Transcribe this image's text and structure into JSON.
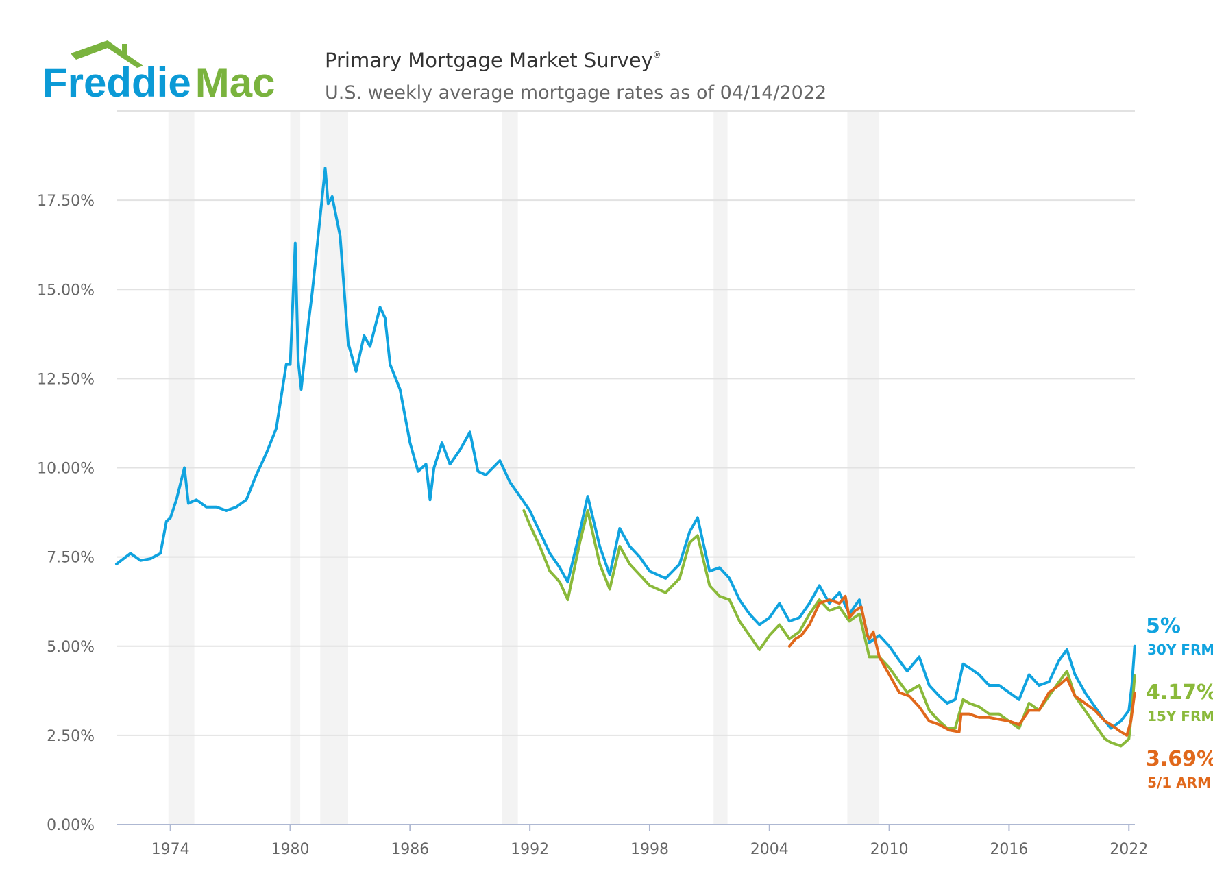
{
  "brand": {
    "name_part1": "Freddie",
    "name_part2": "Mac",
    "color_blue": "#0b9ad6",
    "color_green": "#7ab33e"
  },
  "header": {
    "title": "Primary Mortgage Market Survey",
    "title_mark": "®",
    "subtitle": "U.S. weekly average mortgage rates as of 04/14/2022"
  },
  "chart_data": {
    "type": "line",
    "title": "Primary Mortgage Market Survey",
    "subtitle": "U.S. weekly average mortgage rates as of 04/14/2022",
    "xlabel": "",
    "ylabel": "",
    "xlim": [
      1971.3,
      2022.3
    ],
    "ylim": [
      0,
      20
    ],
    "grid": true,
    "x_ticks": [
      1974,
      1980,
      1986,
      1992,
      1998,
      2004,
      2010,
      2016,
      2022
    ],
    "y_ticks": [
      0,
      2.5,
      5,
      7.5,
      10,
      12.5,
      15,
      17.5
    ],
    "y_tick_labels": [
      "0.00%",
      "2.50%",
      "5.00%",
      "7.50%",
      "10.00%",
      "12.50%",
      "15.00%",
      "17.50%"
    ],
    "recessions": [
      [
        1973.9,
        1975.2
      ],
      [
        1980.0,
        1980.5
      ],
      [
        1981.5,
        1982.9
      ],
      [
        1990.6,
        1991.4
      ],
      [
        2001.2,
        2001.9
      ],
      [
        2007.9,
        2009.5
      ]
    ],
    "series": [
      {
        "name": "30Y FRM",
        "color": "#10a3df",
        "final_value_label": "5%",
        "x": [
          1971.3,
          1972.0,
          1972.5,
          1973.0,
          1973.5,
          1973.8,
          1974.0,
          1974.3,
          1974.7,
          1974.9,
          1975.3,
          1975.8,
          1976.3,
          1976.8,
          1977.3,
          1977.8,
          1978.3,
          1978.8,
          1979.3,
          1979.8,
          1980.0,
          1980.25,
          1980.4,
          1980.55,
          1980.9,
          1981.1,
          1981.4,
          1981.75,
          1981.9,
          1982.1,
          1982.5,
          1982.9,
          1983.3,
          1983.7,
          1984.0,
          1984.5,
          1984.75,
          1985.0,
          1985.5,
          1986.0,
          1986.4,
          1986.8,
          1987.0,
          1987.2,
          1987.6,
          1988.0,
          1988.5,
          1989.0,
          1989.4,
          1989.8,
          1990.5,
          1991.0,
          1991.5,
          1992.0,
          1992.5,
          1993.0,
          1993.5,
          1993.9,
          1994.5,
          1994.9,
          1995.5,
          1996.0,
          1996.5,
          1997.0,
          1997.5,
          1998.0,
          1998.8,
          1999.5,
          2000.0,
          2000.4,
          2001.0,
          2001.5,
          2002.0,
          2002.5,
          2003.0,
          2003.5,
          2004.0,
          2004.5,
          2005.0,
          2005.5,
          2006.0,
          2006.5,
          2007.0,
          2007.5,
          2008.0,
          2008.5,
          2009.0,
          2009.5,
          2010.0,
          2010.5,
          2010.9,
          2011.5,
          2012.0,
          2012.5,
          2012.9,
          2013.3,
          2013.7,
          2014.0,
          2014.5,
          2015.0,
          2015.5,
          2016.0,
          2016.5,
          2017.0,
          2017.5,
          2018.0,
          2018.5,
          2018.9,
          2019.3,
          2019.8,
          2020.3,
          2020.8,
          2021.1,
          2021.6,
          2022.0,
          2022.15,
          2022.29
        ],
        "y": [
          7.3,
          7.6,
          7.4,
          7.45,
          7.6,
          8.5,
          8.6,
          9.1,
          10.0,
          9.0,
          9.1,
          8.9,
          8.9,
          8.8,
          8.9,
          9.1,
          9.8,
          10.4,
          11.1,
          12.9,
          12.9,
          16.3,
          13.0,
          12.2,
          14.0,
          14.9,
          16.5,
          18.4,
          17.4,
          17.6,
          16.5,
          13.5,
          12.7,
          13.7,
          13.4,
          14.5,
          14.2,
          12.9,
          12.2,
          10.7,
          9.9,
          10.1,
          9.1,
          10.0,
          10.7,
          10.1,
          10.5,
          11.0,
          9.9,
          9.8,
          10.2,
          9.6,
          9.2,
          8.8,
          8.2,
          7.6,
          7.2,
          6.8,
          8.2,
          9.2,
          7.8,
          7.0,
          8.3,
          7.8,
          7.5,
          7.1,
          6.9,
          7.3,
          8.2,
          8.6,
          7.1,
          7.2,
          6.9,
          6.3,
          5.9,
          5.6,
          5.8,
          6.2,
          5.7,
          5.8,
          6.2,
          6.7,
          6.2,
          6.5,
          5.9,
          6.3,
          5.1,
          5.3,
          5.0,
          4.6,
          4.3,
          4.7,
          3.9,
          3.6,
          3.4,
          3.5,
          4.5,
          4.4,
          4.2,
          3.9,
          3.9,
          3.7,
          3.5,
          4.2,
          3.9,
          4.0,
          4.6,
          4.9,
          4.2,
          3.7,
          3.3,
          2.9,
          2.7,
          2.9,
          3.2,
          3.9,
          5.0
        ]
      },
      {
        "name": "15Y FRM",
        "color": "#8ab93a",
        "final_value_label": "4.17%",
        "x": [
          1991.7,
          1992.0,
          1992.5,
          1993.0,
          1993.5,
          1993.9,
          1994.5,
          1994.9,
          1995.5,
          1996.0,
          1996.5,
          1997.0,
          1997.5,
          1998.0,
          1998.8,
          1999.5,
          2000.0,
          2000.4,
          2001.0,
          2001.5,
          2002.0,
          2002.5,
          2003.0,
          2003.5,
          2004.0,
          2004.5,
          2005.0,
          2005.5,
          2006.0,
          2006.5,
          2007.0,
          2007.5,
          2008.0,
          2008.5,
          2009.0,
          2009.5,
          2010.0,
          2010.5,
          2010.9,
          2011.5,
          2012.0,
          2012.5,
          2012.9,
          2013.3,
          2013.7,
          2014.0,
          2014.5,
          2015.0,
          2015.5,
          2016.0,
          2016.5,
          2017.0,
          2017.5,
          2018.0,
          2018.5,
          2018.9,
          2019.3,
          2019.8,
          2020.3,
          2020.8,
          2021.1,
          2021.6,
          2022.0,
          2022.15,
          2022.29
        ],
        "y": [
          8.8,
          8.4,
          7.8,
          7.1,
          6.8,
          6.3,
          7.9,
          8.8,
          7.3,
          6.6,
          7.8,
          7.3,
          7.0,
          6.7,
          6.5,
          6.9,
          7.9,
          8.1,
          6.7,
          6.4,
          6.3,
          5.7,
          5.3,
          4.9,
          5.3,
          5.6,
          5.2,
          5.4,
          5.9,
          6.3,
          6.0,
          6.1,
          5.7,
          5.9,
          4.7,
          4.7,
          4.4,
          4.0,
          3.7,
          3.9,
          3.2,
          2.9,
          2.7,
          2.7,
          3.5,
          3.4,
          3.3,
          3.1,
          3.1,
          2.9,
          2.7,
          3.4,
          3.2,
          3.6,
          4.0,
          4.3,
          3.6,
          3.2,
          2.8,
          2.4,
          2.3,
          2.2,
          2.4,
          3.2,
          4.17
        ]
      },
      {
        "name": "5/1 ARM",
        "color": "#e0681b",
        "final_value_label": "3.69%",
        "x": [
          2005.0,
          2005.3,
          2005.6,
          2006.0,
          2006.5,
          2007.0,
          2007.5,
          2007.8,
          2008.0,
          2008.3,
          2008.6,
          2008.9,
          2009.0,
          2009.2,
          2009.5,
          2010.0,
          2010.5,
          2011.0,
          2011.5,
          2012.0,
          2012.5,
          2013.0,
          2013.5,
          2013.6,
          2014.0,
          2014.5,
          2015.0,
          2015.5,
          2016.0,
          2016.5,
          2017.0,
          2017.5,
          2018.0,
          2018.5,
          2018.9,
          2019.3,
          2019.8,
          2020.3,
          2020.8,
          2021.1,
          2021.6,
          2021.9,
          2022.1,
          2022.29
        ],
        "y": [
          5.0,
          5.2,
          5.3,
          5.6,
          6.2,
          6.3,
          6.2,
          6.4,
          5.8,
          6.0,
          6.1,
          5.3,
          5.2,
          5.4,
          4.7,
          4.2,
          3.7,
          3.6,
          3.3,
          2.9,
          2.8,
          2.65,
          2.6,
          3.1,
          3.1,
          3.0,
          3.0,
          2.95,
          2.9,
          2.8,
          3.2,
          3.2,
          3.7,
          3.9,
          4.1,
          3.6,
          3.4,
          3.2,
          2.9,
          2.8,
          2.6,
          2.5,
          2.9,
          3.69
        ]
      }
    ]
  },
  "end_labels": [
    {
      "value": "5%",
      "name": "30Y FRM"
    },
    {
      "value": "4.17%",
      "name": "15Y FRM"
    },
    {
      "value": "3.69%",
      "name": "5/1 ARM"
    }
  ]
}
